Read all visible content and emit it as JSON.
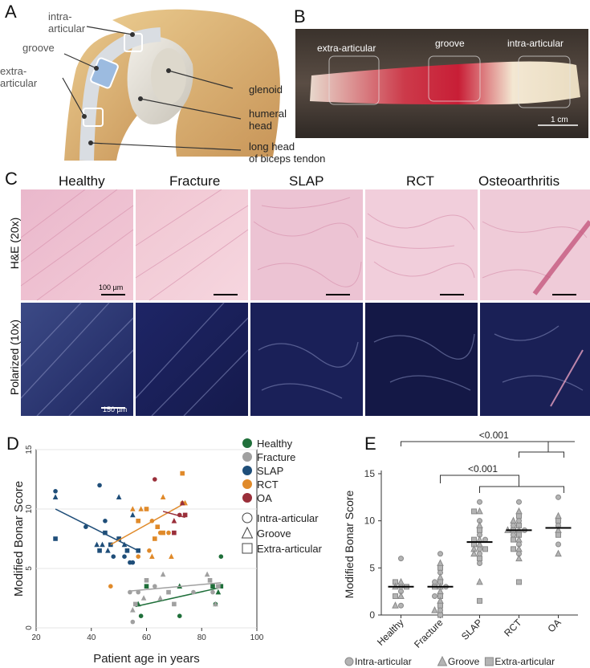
{
  "panelA": {
    "letter": "A",
    "labels": {
      "intra": "intra-\narticular",
      "groove": "groove",
      "extra": "extra-\narticular",
      "glenoid": "glenoid",
      "humeral": "humeral\nhead",
      "biceps": "long head\nof biceps tendon"
    }
  },
  "panelB": {
    "letter": "B",
    "labels": {
      "extra": "extra-articular",
      "groove": "groove",
      "intra": "intra-articular",
      "scale": "1 cm"
    }
  },
  "panelC": {
    "letter": "C",
    "columns": [
      "Healthy",
      "Fracture",
      "SLAP",
      "RCT",
      "Osteoarthritis"
    ],
    "rows": [
      "H&E (20x)",
      "Polarized (10x)"
    ],
    "scale_he": "100 µm",
    "scale_pol": "150 µm"
  },
  "colors": {
    "healthy": "#1f6f3a",
    "fracture": "#a0a0a0",
    "slap": "#1f4e79",
    "rct": "#e08a2a",
    "oa": "#9a2f3a"
  },
  "chart_data": [
    {
      "type": "scatter",
      "letter": "D",
      "xlabel": "Patient age in years",
      "ylabel": "Modified Bonar Score",
      "xlim": [
        20,
        100
      ],
      "ylim": [
        0,
        15
      ],
      "xticks": [
        20,
        40,
        60,
        80,
        100
      ],
      "yticks": [
        0,
        5,
        10,
        15
      ],
      "legend_groups": [
        {
          "key": "healthy",
          "name": "Healthy"
        },
        {
          "key": "fracture",
          "name": "Fracture"
        },
        {
          "key": "slap",
          "name": "SLAP"
        },
        {
          "key": "rct",
          "name": "RCT"
        },
        {
          "key": "oa",
          "name": "OA"
        }
      ],
      "legend_shapes": [
        {
          "shape": "circle",
          "name": "Intra-articular"
        },
        {
          "shape": "triangle",
          "name": "Groove"
        },
        {
          "shape": "square",
          "name": "Extra-articular"
        }
      ],
      "series": [
        {
          "key": "healthy",
          "points": [
            [
              58,
              1
            ],
            [
              57,
              2
            ],
            [
              60,
              3.5
            ],
            [
              72,
              1
            ],
            [
              72,
              3.5
            ],
            [
              84,
              3.5
            ],
            [
              85,
              2
            ],
            [
              86,
              3
            ],
            [
              87,
              3.5
            ],
            [
              87,
              6
            ]
          ],
          "fit": [
            [
              56,
              1.8
            ],
            [
              87,
              3.4
            ]
          ]
        },
        {
          "key": "fracture",
          "points": [
            [
              55,
              0.5
            ],
            [
              55,
              1.5
            ],
            [
              56,
              2
            ],
            [
              57,
              3
            ],
            [
              59,
              2.5
            ],
            [
              60,
              4
            ],
            [
              63,
              3.5
            ],
            [
              65,
              2.5
            ],
            [
              68,
              3
            ],
            [
              77,
              3
            ],
            [
              82,
              4.5
            ],
            [
              83,
              4
            ],
            [
              84,
              3
            ],
            [
              85,
              2
            ],
            [
              86,
              3.5
            ],
            [
              54,
              3
            ],
            [
              66,
              4.5
            ],
            [
              70,
              2
            ]
          ],
          "fit": [
            [
              54,
              3.1
            ],
            [
              87,
              3.8
            ]
          ]
        },
        {
          "key": "slap",
          "points": [
            [
              27,
              11.5
            ],
            [
              27,
              11
            ],
            [
              27,
              7.5
            ],
            [
              38,
              8.5
            ],
            [
              42,
              7
            ],
            [
              43,
              6.5
            ],
            [
              43,
              12
            ],
            [
              44,
              7
            ],
            [
              45,
              8
            ],
            [
              45,
              9
            ],
            [
              46,
              6.5
            ],
            [
              47,
              7
            ],
            [
              48,
              6
            ],
            [
              50,
              11
            ],
            [
              50,
              7.5
            ],
            [
              52,
              6
            ],
            [
              52,
              7
            ],
            [
              53,
              6.5
            ],
            [
              54,
              5.5
            ],
            [
              55,
              9.5
            ],
            [
              57,
              6.5
            ],
            [
              55,
              5.5
            ]
          ],
          "fit": [
            [
              27,
              10
            ],
            [
              57,
              6.5
            ]
          ]
        },
        {
          "key": "rct",
          "points": [
            [
              47,
              3.5
            ],
            [
              55,
              10
            ],
            [
              57,
              9
            ],
            [
              57,
              6
            ],
            [
              58,
              10
            ],
            [
              60,
              10
            ],
            [
              62,
              9
            ],
            [
              62,
              6
            ],
            [
              64,
              8.5
            ],
            [
              65,
              8
            ],
            [
              66,
              11
            ],
            [
              66,
              8
            ],
            [
              68,
              8
            ],
            [
              69,
              6
            ],
            [
              73,
              13
            ],
            [
              73,
              10.5
            ],
            [
              74,
              10.5
            ],
            [
              63,
              7.5
            ],
            [
              61,
              6.5
            ]
          ],
          "fit": [
            [
              47,
              7
            ],
            [
              74,
              10.5
            ]
          ]
        },
        {
          "key": "oa",
          "points": [
            [
              63,
              12.5
            ],
            [
              70,
              9
            ],
            [
              70,
              8
            ],
            [
              72,
              9.5
            ],
            [
              73,
              10.5
            ],
            [
              74,
              9.5
            ]
          ],
          "fit": [
            [
              66,
              9.8
            ],
            [
              74,
              9.3
            ]
          ]
        }
      ]
    },
    {
      "type": "scatter",
      "letter": "E",
      "ylabel": "Modified Bonar Score",
      "categories": [
        "Healthy",
        "Fracture",
        "SLAP",
        "RCT",
        "OA"
      ],
      "ylim": [
        0,
        15
      ],
      "yticks": [
        0,
        5,
        10,
        15
      ],
      "medians": [
        3,
        3,
        7.75,
        9,
        9.25
      ],
      "values": [
        [
          6,
          3.5,
          3.5,
          3,
          3,
          3,
          2.5,
          2,
          2,
          1,
          1
        ],
        [
          6.5,
          5.5,
          5,
          4.5,
          4,
          3.5,
          3.5,
          3,
          3,
          3,
          2.5,
          2,
          2,
          1.5,
          1,
          0.5,
          0.5,
          0
        ],
        [
          12,
          11,
          11,
          10,
          9.5,
          9,
          8.5,
          8,
          8,
          8,
          7.5,
          7.5,
          7,
          7,
          7,
          6.5,
          6.5,
          6,
          5.5,
          3.5,
          1.5
        ],
        [
          12,
          11,
          10.5,
          10,
          10,
          9.5,
          9.5,
          9,
          9,
          9,
          9,
          8.5,
          8.5,
          8,
          8,
          7.5,
          7,
          7,
          6.5,
          6,
          3.5
        ],
        [
          12.5,
          10.5,
          10,
          9.5,
          9,
          8.5,
          7.5,
          6.5
        ]
      ],
      "annotations": [
        {
          "text": "<0.001",
          "from": "Healthy",
          "to": [
            "RCT",
            "OA"
          ]
        },
        {
          "text": "<0.001",
          "from": "Fracture",
          "to": [
            "SLAP",
            "RCT",
            "OA"
          ]
        }
      ],
      "legend": [
        {
          "shape": "circle",
          "name": "Intra-articular"
        },
        {
          "shape": "triangle",
          "name": "Groove"
        },
        {
          "shape": "square",
          "name": "Extra-articular"
        }
      ]
    }
  ]
}
